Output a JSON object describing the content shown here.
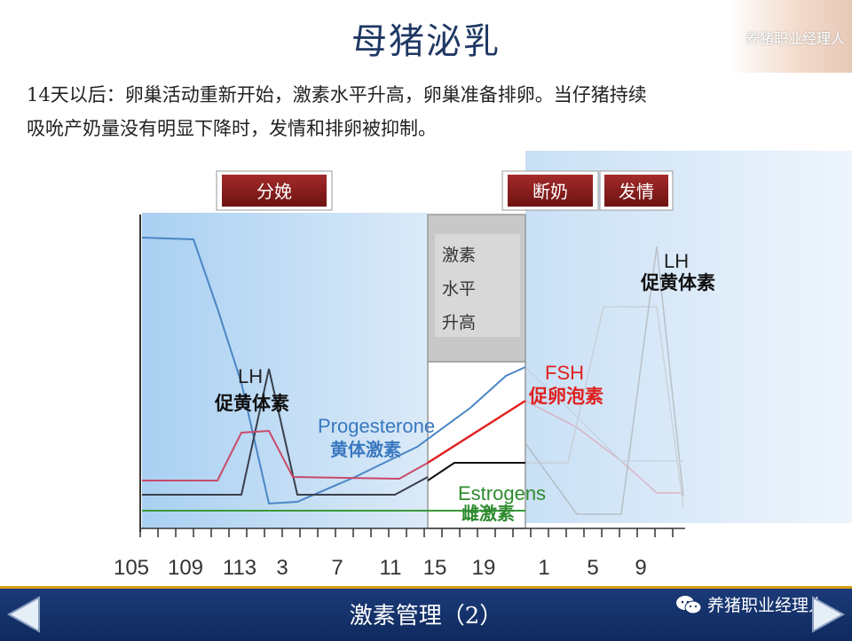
{
  "header": {
    "title": "母猪泌乳",
    "watermark": "养猪职业经理人"
  },
  "description": {
    "line1": "14天以后：卵巢活动重新开始，激素水平升高，卵巢准备排卵。当仔猪持续",
    "line2": "吸吮产奶量没有明显下降时，发情和排卵被抑制。"
  },
  "events": {
    "farrowing": "分娩",
    "weaning": "断奶",
    "estrus": "发情"
  },
  "hormone_box": {
    "line1": "激素",
    "line2": "水平",
    "line3": "升高"
  },
  "labels": {
    "lh_left_en": "LH",
    "lh_left_cn": "促黄体素",
    "progesterone_en": "Progesterone",
    "progesterone_cn": "黄体激素",
    "fsh_en": "FSH",
    "fsh_cn": "促卵泡素",
    "estrogens_en": "Estrogens",
    "estrogens_cn": "雌激素",
    "lh_right_en": "LH",
    "lh_right_cn": "促黄体素"
  },
  "axis": {
    "ticks": [
      "105",
      "109",
      "113",
      "3",
      "7",
      "11",
      "15",
      "19",
      "1",
      "5",
      "9"
    ]
  },
  "colors": {
    "progesterone": "#4a86c5",
    "lh": "#3a3f4a",
    "fsh": "#e02020",
    "pink": "#c94a6a",
    "estrogens": "#3a9a3a",
    "event_box": "#8b1a1a"
  },
  "footer": {
    "title": "激素管理（2）",
    "watermark": "养猪职业经理人"
  }
}
